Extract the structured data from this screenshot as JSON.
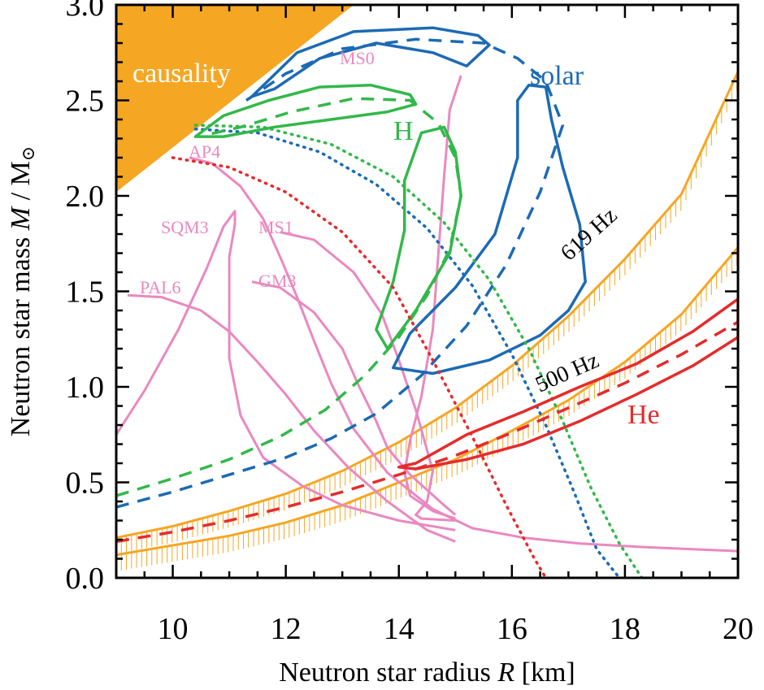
{
  "chart_data": {
    "type": "line",
    "title": "",
    "xlabel_text": "Neutron star radius ",
    "xlabel_symbol": "R",
    "xlabel_unit": " [km]",
    "ylabel_text": "Neutron star mass ",
    "ylabel_symbol": "M",
    "ylabel_unit": " / M",
    "ylabel_sun": "⊙",
    "xlim": [
      9,
      20
    ],
    "ylim": [
      0,
      3
    ],
    "xticks": [
      10,
      12,
      14,
      16,
      18,
      20
    ],
    "yticks": [
      0.0,
      0.5,
      1.0,
      1.5,
      2.0,
      2.5,
      3.0
    ],
    "xtick_labels": [
      "10",
      "12",
      "14",
      "16",
      "18",
      "20"
    ],
    "ytick_labels": [
      "0.0",
      "0.5",
      "1.0",
      "1.5",
      "2.0",
      "2.5",
      "3.0"
    ],
    "grid": false,
    "colors": {
      "blue": "#1c6ab5",
      "green": "#32b84a",
      "red": "#e52b2b",
      "pink": "#ea88c0",
      "orange": "#f5a623",
      "white": "#ffffff",
      "black": "#000000"
    },
    "causality": {
      "label": "causality",
      "polygon": [
        [
          9.0,
          2.02
        ],
        [
          9.0,
          3.0
        ],
        [
          13.2,
          3.0
        ]
      ]
    },
    "spin_limits": [
      {
        "label": "619 Hz",
        "x": [
          9.0,
          10.0,
          11.0,
          12.0,
          13.0,
          14.0,
          15.0,
          16.0,
          17.0,
          18.0,
          19.0,
          20.0
        ],
        "y": [
          0.21,
          0.27,
          0.35,
          0.44,
          0.56,
          0.71,
          0.89,
          1.11,
          1.37,
          1.67,
          2.01,
          2.65
        ]
      },
      {
        "label": "500 Hz",
        "x": [
          9.0,
          10.0,
          11.0,
          12.0,
          13.0,
          14.0,
          15.0,
          16.0,
          17.0,
          18.0,
          19.0,
          20.0
        ],
        "y": [
          0.12,
          0.17,
          0.22,
          0.29,
          0.38,
          0.5,
          0.62,
          0.77,
          0.93,
          1.13,
          1.38,
          1.73
        ]
      }
    ],
    "contours": [
      {
        "name": "solar",
        "color_key": "blue",
        "outer": [
          [
            11.4,
            2.52
          ],
          [
            12.2,
            2.75
          ],
          [
            13.2,
            2.86
          ],
          [
            14.6,
            2.88
          ],
          [
            15.4,
            2.84
          ],
          [
            15.6,
            2.79
          ],
          [
            15.2,
            2.68
          ],
          [
            14.6,
            2.75
          ],
          [
            13.6,
            2.8
          ],
          [
            12.6,
            2.72
          ],
          [
            11.8,
            2.56
          ],
          [
            11.4,
            2.52
          ]
        ],
        "inner": [
          [
            13.9,
            1.1
          ],
          [
            14.2,
            1.28
          ],
          [
            15.0,
            1.52
          ],
          [
            15.7,
            1.8
          ],
          [
            16.1,
            2.2
          ],
          [
            16.1,
            2.5
          ],
          [
            16.3,
            2.58
          ],
          [
            16.6,
            2.57
          ],
          [
            16.7,
            2.4
          ],
          [
            16.9,
            2.15
          ],
          [
            17.2,
            1.85
          ],
          [
            17.3,
            1.55
          ],
          [
            17.0,
            1.4
          ],
          [
            16.5,
            1.27
          ],
          [
            15.6,
            1.14
          ],
          [
            14.6,
            1.07
          ],
          [
            13.9,
            1.1
          ]
        ],
        "dashed": [
          [
            9.0,
            0.37
          ],
          [
            10.0,
            0.45
          ],
          [
            11.0,
            0.54
          ],
          [
            12.0,
            0.63
          ],
          [
            12.8,
            0.73
          ],
          [
            13.6,
            0.86
          ],
          [
            14.4,
            1.06
          ],
          [
            15.2,
            1.32
          ],
          [
            15.9,
            1.64
          ],
          [
            16.5,
            2.02
          ],
          [
            16.9,
            2.37
          ],
          [
            16.6,
            2.6
          ],
          [
            16.1,
            2.72
          ],
          [
            15.5,
            2.8
          ],
          [
            14.3,
            2.82
          ],
          [
            13.0,
            2.77
          ],
          [
            12.0,
            2.64
          ],
          [
            11.3,
            2.5
          ]
        ],
        "dotted": [
          [
            10.4,
            2.35
          ],
          [
            11.5,
            2.33
          ],
          [
            12.6,
            2.23
          ],
          [
            13.6,
            2.06
          ],
          [
            14.5,
            1.83
          ],
          [
            15.3,
            1.53
          ],
          [
            16.0,
            1.17
          ],
          [
            16.6,
            0.8
          ],
          [
            17.1,
            0.45
          ],
          [
            17.5,
            0.15
          ],
          [
            17.9,
            0.0
          ]
        ]
      },
      {
        "name": "H",
        "color_key": "green",
        "outer": [
          [
            10.4,
            2.31
          ],
          [
            10.9,
            2.42
          ],
          [
            11.7,
            2.5
          ],
          [
            12.6,
            2.57
          ],
          [
            13.5,
            2.58
          ],
          [
            14.2,
            2.53
          ],
          [
            14.3,
            2.48
          ],
          [
            13.8,
            2.44
          ],
          [
            12.8,
            2.4
          ],
          [
            11.8,
            2.36
          ],
          [
            10.9,
            2.31
          ],
          [
            10.4,
            2.31
          ]
        ],
        "inner": [
          [
            13.8,
            1.2
          ],
          [
            14.3,
            1.4
          ],
          [
            14.9,
            1.7
          ],
          [
            15.1,
            2.0
          ],
          [
            15.0,
            2.23
          ],
          [
            14.8,
            2.36
          ],
          [
            14.4,
            2.33
          ],
          [
            14.1,
            2.08
          ],
          [
            14.1,
            1.82
          ],
          [
            13.9,
            1.55
          ],
          [
            13.6,
            1.3
          ],
          [
            13.8,
            1.2
          ]
        ],
        "dashed": [
          [
            9.0,
            0.43
          ],
          [
            10.0,
            0.52
          ],
          [
            11.0,
            0.62
          ],
          [
            11.9,
            0.74
          ],
          [
            12.7,
            0.88
          ],
          [
            13.4,
            1.06
          ],
          [
            14.0,
            1.26
          ],
          [
            14.5,
            1.48
          ],
          [
            14.9,
            1.72
          ],
          [
            15.1,
            2.0
          ],
          [
            15.0,
            2.2
          ],
          [
            14.7,
            2.38
          ],
          [
            14.2,
            2.5
          ],
          [
            13.2,
            2.51
          ],
          [
            12.1,
            2.44
          ],
          [
            11.2,
            2.36
          ],
          [
            10.6,
            2.32
          ]
        ],
        "dotted": [
          [
            10.4,
            2.37
          ],
          [
            11.6,
            2.36
          ],
          [
            12.8,
            2.27
          ],
          [
            13.9,
            2.1
          ],
          [
            14.8,
            1.86
          ],
          [
            15.6,
            1.56
          ],
          [
            16.3,
            1.2
          ],
          [
            16.9,
            0.82
          ],
          [
            17.4,
            0.47
          ],
          [
            17.9,
            0.18
          ],
          [
            18.3,
            0.0
          ]
        ]
      },
      {
        "name": "He",
        "color_key": "red",
        "outer": [
          [
            14.3,
            0.6
          ],
          [
            15.2,
            0.75
          ],
          [
            16.2,
            0.87
          ],
          [
            17.2,
            1.0
          ],
          [
            18.2,
            1.12
          ],
          [
            19.2,
            1.29
          ],
          [
            20.0,
            1.46
          ],
          [
            20.0,
            1.26
          ],
          [
            19.2,
            1.11
          ],
          [
            18.2,
            0.96
          ],
          [
            17.2,
            0.82
          ],
          [
            16.2,
            0.7
          ],
          [
            15.2,
            0.62
          ],
          [
            14.3,
            0.57
          ],
          [
            14.0,
            0.58
          ],
          [
            14.3,
            0.6
          ]
        ],
        "dashed": [
          [
            9.0,
            0.19
          ],
          [
            10.0,
            0.24
          ],
          [
            11.0,
            0.3
          ],
          [
            12.0,
            0.37
          ],
          [
            13.0,
            0.45
          ],
          [
            14.0,
            0.54
          ],
          [
            15.0,
            0.64
          ],
          [
            16.0,
            0.76
          ],
          [
            17.0,
            0.89
          ],
          [
            18.0,
            1.02
          ],
          [
            19.0,
            1.17
          ],
          [
            20.0,
            1.34
          ]
        ],
        "dotted": [
          [
            10.0,
            2.2
          ],
          [
            11.0,
            2.15
          ],
          [
            12.0,
            2.02
          ],
          [
            13.0,
            1.81
          ],
          [
            13.9,
            1.52
          ],
          [
            14.6,
            1.14
          ],
          [
            15.3,
            0.74
          ],
          [
            15.9,
            0.38
          ],
          [
            16.4,
            0.1
          ],
          [
            16.6,
            0.0
          ]
        ]
      }
    ],
    "eos": [
      {
        "name": "MS0",
        "x": [
          15.1,
          14.9,
          14.8,
          14.7,
          14.6,
          14.4,
          14.2,
          14.1,
          14.2,
          14.6,
          15.0
        ],
        "y": [
          2.63,
          2.45,
          2.1,
          1.7,
          1.3,
          0.95,
          0.72,
          0.55,
          0.43,
          0.35,
          0.31
        ]
      },
      {
        "name": "MS1",
        "x": [
          11.9,
          12.5,
          13.2,
          13.7,
          14.0,
          14.3,
          14.6,
          14.5,
          14.3,
          14.4,
          15.0
        ],
        "y": [
          1.81,
          1.77,
          1.6,
          1.38,
          1.14,
          0.88,
          0.56,
          0.4,
          0.33,
          0.31,
          0.3
        ]
      },
      {
        "name": "AP4",
        "x": [
          10.3,
          10.7,
          11.2,
          11.6,
          11.9,
          12.2,
          12.5,
          12.8,
          13.2,
          13.8,
          14.6,
          15.3,
          16.2,
          17.2,
          18.4,
          20.0
        ],
        "y": [
          2.2,
          2.17,
          2.05,
          1.88,
          1.68,
          1.47,
          1.24,
          1.02,
          0.78,
          0.55,
          0.36,
          0.26,
          0.21,
          0.18,
          0.16,
          0.14
        ]
      },
      {
        "name": "GM3",
        "x": [
          11.4,
          11.9,
          12.5,
          13.0,
          13.3,
          13.6,
          13.8,
          14.2,
          14.8,
          15.0
        ],
        "y": [
          1.55,
          1.52,
          1.39,
          1.2,
          1.0,
          0.82,
          0.68,
          0.54,
          0.38,
          0.33
        ]
      },
      {
        "name": "PAL6",
        "x": [
          9.2,
          9.8,
          10.5,
          11.0,
          11.5,
          12.0,
          12.5,
          13.1,
          13.8,
          14.5,
          15.0
        ],
        "y": [
          1.48,
          1.47,
          1.4,
          1.29,
          1.13,
          0.96,
          0.77,
          0.58,
          0.4,
          0.25,
          0.19
        ]
      },
      {
        "name": "SQM3",
        "x": [
          9.0,
          9.5,
          10.1,
          10.6,
          10.9,
          11.1,
          11.1,
          11.0,
          11.0,
          11.0,
          11.2,
          11.6,
          12.3,
          13.0,
          14.0,
          15.0
        ],
        "y": [
          0.75,
          0.98,
          1.3,
          1.62,
          1.84,
          1.92,
          1.85,
          1.68,
          1.45,
          1.15,
          0.85,
          0.63,
          0.48,
          0.38,
          0.3,
          0.25
        ]
      }
    ]
  }
}
